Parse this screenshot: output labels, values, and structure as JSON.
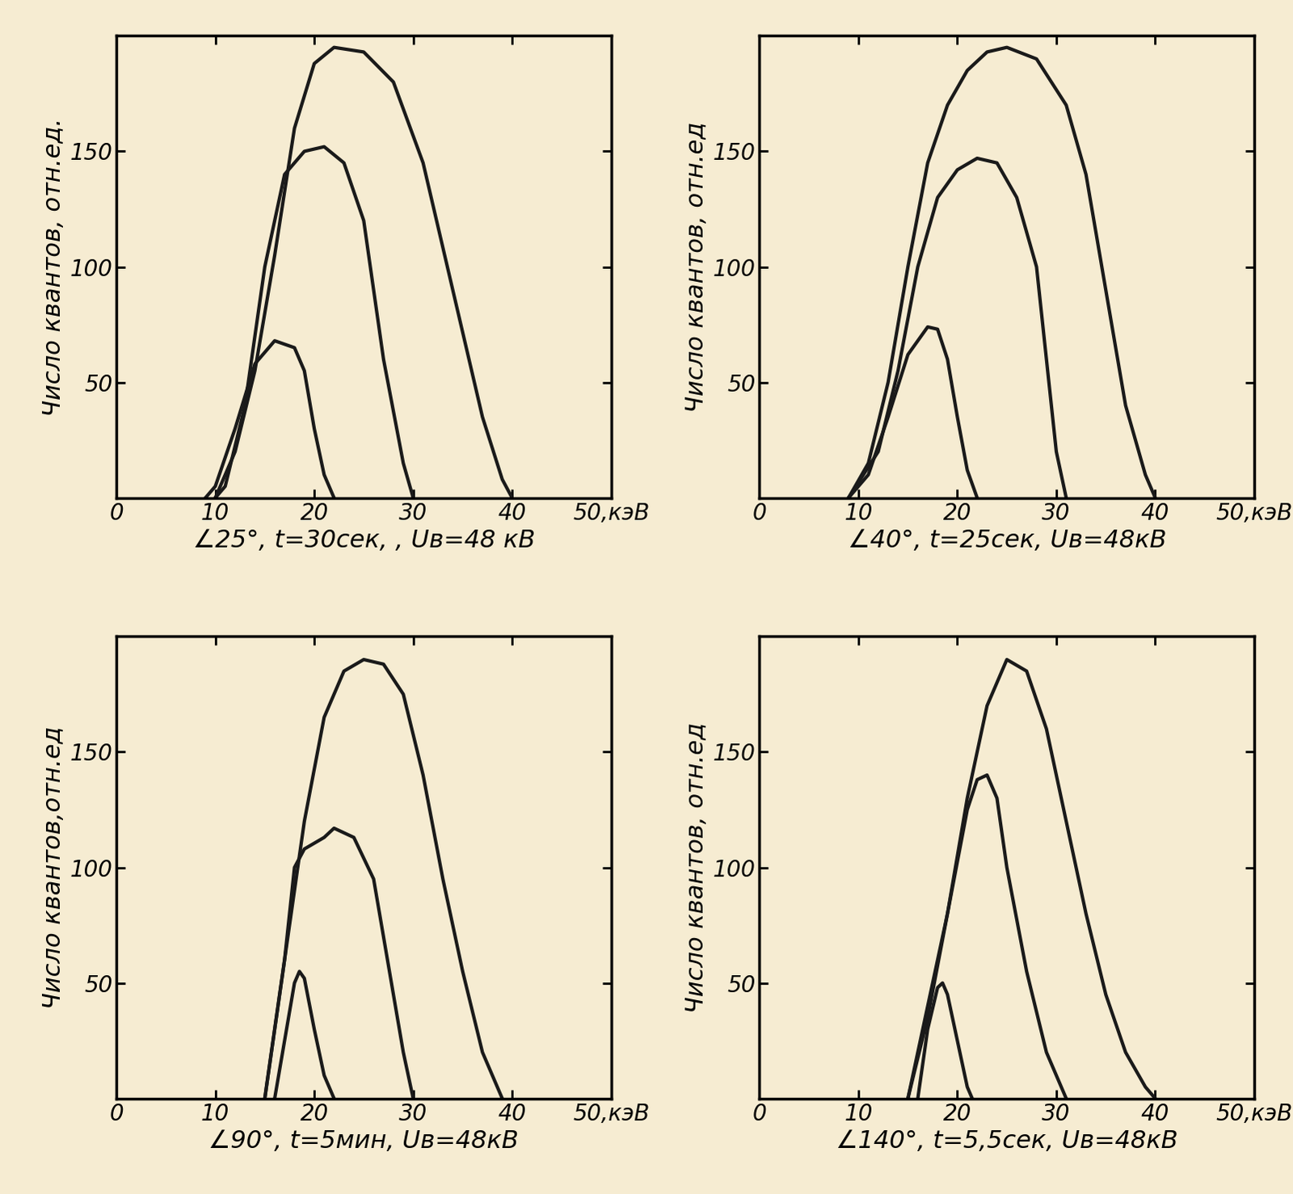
{
  "chart_data": [
    {
      "type": "line",
      "xlabel": "∠25°, t=30сек, , Uв=48 кВ",
      "ylabel": "Число квантов, отн.ед.",
      "xlim": [
        0,
        50
      ],
      "ylim": [
        0,
        200
      ],
      "xticks": [
        0,
        10,
        20,
        30,
        40,
        {
          "value": 50,
          "label": "50,кэВ"
        }
      ],
      "yticks": [
        50,
        100,
        150
      ],
      "series": [
        {
          "color": "#1a1a1a",
          "x": [
            10,
            12,
            14,
            16,
            18,
            20,
            22,
            25,
            28,
            31,
            34,
            37,
            39,
            40
          ],
          "values": [
            0,
            20,
            55,
            105,
            160,
            188,
            195,
            193,
            180,
            145,
            90,
            35,
            8,
            0
          ]
        },
        {
          "color": "#1a1a1a",
          "x": [
            10,
            11,
            13,
            15,
            17,
            19,
            21,
            23,
            25,
            27,
            29,
            30
          ],
          "values": [
            0,
            5,
            40,
            100,
            140,
            150,
            152,
            145,
            120,
            60,
            15,
            0
          ]
        },
        {
          "color": "#1a1a1a",
          "x": [
            9,
            10,
            12,
            14,
            16,
            18,
            19,
            20,
            21,
            22
          ],
          "values": [
            0,
            5,
            30,
            58,
            68,
            65,
            55,
            30,
            10,
            0
          ]
        }
      ]
    },
    {
      "type": "line",
      "xlabel": "∠40°, t=25сек, Uв=48кВ",
      "ylabel": "Число квантов, отн.ед",
      "xlim": [
        0,
        50
      ],
      "ylim": [
        0,
        200
      ],
      "xticks": [
        0,
        10,
        20,
        30,
        40,
        {
          "value": 50,
          "label": "50,кэВ"
        }
      ],
      "yticks": [
        50,
        100,
        150
      ],
      "series": [
        {
          "color": "#1a1a1a",
          "x": [
            9,
            11,
            13,
            15,
            17,
            19,
            21,
            23,
            25,
            28,
            31,
            33,
            35,
            37,
            39,
            40
          ],
          "values": [
            0,
            15,
            50,
            100,
            145,
            170,
            185,
            193,
            195,
            190,
            170,
            140,
            90,
            40,
            10,
            0
          ]
        },
        {
          "color": "#1a1a1a",
          "x": [
            9,
            12,
            14,
            16,
            18,
            20,
            22,
            24,
            26,
            28,
            29,
            30,
            31
          ],
          "values": [
            0,
            20,
            55,
            100,
            130,
            142,
            147,
            145,
            130,
            100,
            60,
            20,
            0
          ]
        },
        {
          "color": "#1a1a1a",
          "x": [
            9,
            11,
            13,
            15,
            17,
            18,
            19,
            20,
            21,
            22
          ],
          "values": [
            0,
            10,
            35,
            62,
            74,
            73,
            60,
            35,
            12,
            0
          ]
        }
      ]
    },
    {
      "type": "line",
      "xlabel": "∠90°, t=5мин, Uв=48кВ",
      "ylabel": "Число квантов,отн.ед",
      "xlim": [
        0,
        50
      ],
      "ylim": [
        0,
        200
      ],
      "xticks": [
        0,
        10,
        20,
        30,
        40,
        {
          "value": 50,
          "label": "50,кэВ"
        }
      ],
      "yticks": [
        50,
        100,
        150
      ],
      "series": [
        {
          "color": "#1a1a1a",
          "x": [
            15,
            17,
            19,
            21,
            23,
            25,
            27,
            29,
            31,
            33,
            35,
            37,
            39
          ],
          "values": [
            0,
            60,
            120,
            165,
            185,
            190,
            188,
            175,
            140,
            95,
            55,
            20,
            0
          ]
        },
        {
          "color": "#1a1a1a",
          "x": [
            15,
            17,
            18,
            19,
            21,
            22,
            24,
            26,
            27,
            28,
            29,
            30
          ],
          "values": [
            0,
            60,
            100,
            108,
            113,
            117,
            113,
            95,
            70,
            45,
            20,
            0
          ]
        },
        {
          "color": "#1a1a1a",
          "x": [
            16,
            17,
            18,
            18.5,
            19,
            20,
            21,
            22
          ],
          "values": [
            0,
            25,
            50,
            55,
            52,
            30,
            10,
            0
          ]
        }
      ]
    },
    {
      "type": "line",
      "xlabel": "∠140°, t=5,5сек, Uв=48кВ",
      "ylabel": "Число квантов, отн.ед",
      "xlim": [
        0,
        50
      ],
      "ylim": [
        0,
        200
      ],
      "xticks": [
        0,
        10,
        20,
        30,
        40,
        {
          "value": 50,
          "label": "50,кэВ"
        }
      ],
      "yticks": [
        50,
        100,
        150
      ],
      "series": [
        {
          "color": "#1a1a1a",
          "x": [
            15,
            17,
            19,
            21,
            23,
            25,
            27,
            29,
            31,
            33,
            35,
            37,
            39,
            40
          ],
          "values": [
            0,
            35,
            80,
            130,
            170,
            190,
            185,
            160,
            120,
            80,
            45,
            20,
            5,
            0
          ]
        },
        {
          "color": "#1a1a1a",
          "x": [
            15,
            17,
            19,
            21,
            22,
            23,
            24,
            25,
            27,
            29,
            31
          ],
          "values": [
            0,
            40,
            80,
            125,
            138,
            140,
            130,
            100,
            55,
            20,
            0
          ]
        },
        {
          "color": "#1a1a1a",
          "x": [
            16,
            17,
            18,
            18.5,
            19,
            20,
            21,
            21.5
          ],
          "values": [
            0,
            30,
            48,
            50,
            45,
            25,
            5,
            0
          ]
        }
      ]
    }
  ]
}
